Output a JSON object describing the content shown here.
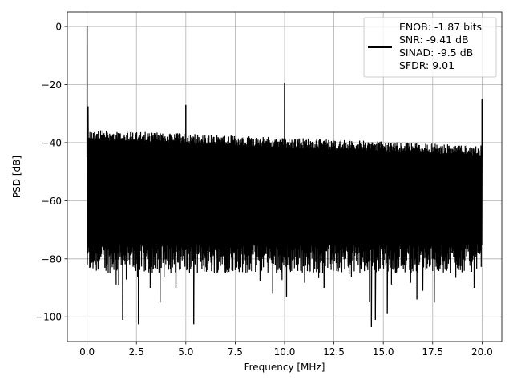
{
  "chart_data": {
    "type": "line",
    "title": "",
    "xlabel": "Frequency [MHz]",
    "ylabel": "PSD [dB]",
    "xlim": [
      -1.0,
      21.0
    ],
    "ylim": [
      -108.5,
      5.0
    ],
    "x_ticks": [
      0.0,
      2.5,
      5.0,
      7.5,
      10.0,
      12.5,
      15.0,
      17.5,
      20.0
    ],
    "x_tick_labels": [
      "0.0",
      "2.5",
      "5.0",
      "7.5",
      "10.0",
      "12.5",
      "15.0",
      "17.5",
      "20.0"
    ],
    "y_ticks": [
      0,
      -20,
      -40,
      -60,
      -80,
      -100
    ],
    "y_tick_labels": [
      "0",
      "−20",
      "−40",
      "−60",
      "−80",
      "−100"
    ],
    "grid": true,
    "legend_position": "top-right",
    "legend_entries": [
      "ENOB: -1.87 bits",
      "SNR: -9.41 dB",
      "SINAD: -9.5 dB",
      "SFDR: 9.01"
    ],
    "series": [
      {
        "name": "ENOB: -1.87 bits\nSNR: -9.41 dB\nSINAD: -9.5 dB\nSFDR: 9.01",
        "color": "#000000",
        "noise_floor": {
          "x_range": [
            0.0,
            20.0
          ],
          "upper_start": -35.5,
          "upper_end": -41.0,
          "lower_typical": -80.0
        },
        "peaks": [
          {
            "x": 0.0,
            "y": 0.0
          },
          {
            "x": 0.05,
            "y": -27.5
          },
          {
            "x": 5.0,
            "y": -27.0
          },
          {
            "x": 10.0,
            "y": -19.5
          },
          {
            "x": 20.0,
            "y": -25.0
          }
        ],
        "dips": [
          {
            "x": 1.8,
            "y": -101.0
          },
          {
            "x": 2.6,
            "y": -102.5
          },
          {
            "x": 5.4,
            "y": -102.5
          },
          {
            "x": 14.4,
            "y": -103.5
          },
          {
            "x": 14.6,
            "y": -101.0
          },
          {
            "x": 15.2,
            "y": -99.0
          },
          {
            "x": 9.4,
            "y": -92.0
          },
          {
            "x": 10.1,
            "y": -93.0
          },
          {
            "x": 16.7,
            "y": -94.0
          },
          {
            "x": 1.6,
            "y": -89.0
          },
          {
            "x": 3.2,
            "y": -90.0
          },
          {
            "x": 4.5,
            "y": -90.0
          },
          {
            "x": 12.0,
            "y": -90.0
          },
          {
            "x": 17.0,
            "y": -91.0
          },
          {
            "x": 19.6,
            "y": -90.0
          }
        ]
      }
    ]
  }
}
